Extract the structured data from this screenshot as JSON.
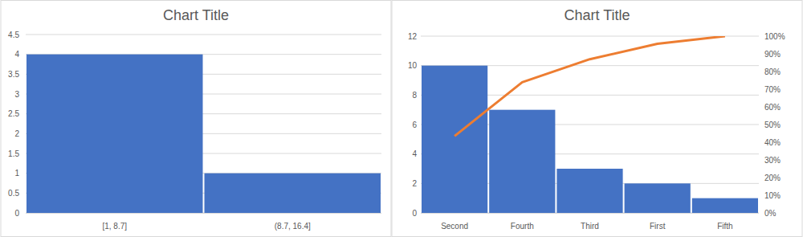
{
  "chart_data": [
    {
      "type": "bar",
      "title": "Chart Title",
      "categories": [
        "[1, 8.7]",
        "(8.7, 16.4]"
      ],
      "values": [
        4,
        1
      ],
      "color": "#4472c4",
      "ylim": [
        0,
        4.5
      ],
      "yticks": [
        0,
        0.5,
        1,
        1.5,
        2,
        2.5,
        3,
        3.5,
        4,
        4.5
      ],
      "grid": true
    },
    {
      "type": "bar",
      "title": "Chart Title",
      "categories": [
        "Second",
        "Fourth",
        "Third",
        "First",
        "Fifth"
      ],
      "series": [
        {
          "type": "bar",
          "color": "#4472c4",
          "values": [
            10,
            7,
            3,
            2,
            1
          ]
        },
        {
          "type": "line",
          "color": "#ed7d31",
          "axis": "y2",
          "values": [
            43.48,
            73.91,
            86.96,
            95.65,
            100
          ]
        }
      ],
      "ylim": [
        0,
        12
      ],
      "yticks": [
        0,
        2,
        4,
        6,
        8,
        10,
        12
      ],
      "y2lim": [
        0,
        100
      ],
      "y2ticks": [
        {
          "value": 0,
          "label": "0%"
        },
        {
          "value": 10,
          "label": "10%"
        },
        {
          "value": 20,
          "label": "20%"
        },
        {
          "value": 30,
          "label": "30%"
        },
        {
          "value": 40,
          "label": "40%"
        },
        {
          "value": 50,
          "label": "50%"
        },
        {
          "value": 60,
          "label": "60%"
        },
        {
          "value": 70,
          "label": "70%"
        },
        {
          "value": 80,
          "label": "80%"
        },
        {
          "value": 90,
          "label": "90%"
        },
        {
          "value": 100,
          "label": "100%"
        }
      ],
      "grid": true
    }
  ]
}
